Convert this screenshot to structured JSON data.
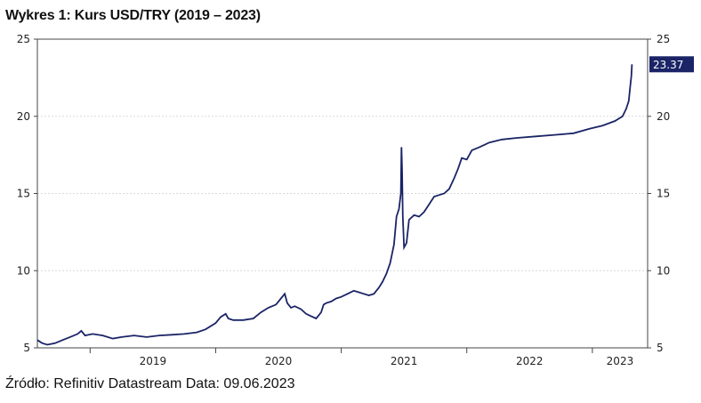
{
  "title": "Wykres 1: Kurs USD/TRY (2019 – 2023)",
  "source": "Źródło: Refinitiv Datastream Data: 09.06.2023",
  "colors": {
    "line": "#1a2466",
    "badge": "#1a2466",
    "grid": "#d9d9d9"
  },
  "chart_data": {
    "type": "line",
    "title": "Wykres 1: Kurs USD/TRY (2019 – 2023)",
    "xlabel": "",
    "ylabel": "",
    "ylim": [
      5,
      25
    ],
    "xlim": [
      2018.58,
      2023.44
    ],
    "y_ticks": [
      5,
      10,
      15,
      20,
      25
    ],
    "x_tick_labels": [
      "2019",
      "2020",
      "2021",
      "2022",
      "2023"
    ],
    "grid": true,
    "last_value_label": "23.37",
    "series": [
      {
        "values": [
          [
            2018.58,
            5.5
          ],
          [
            2018.62,
            5.3
          ],
          [
            2018.66,
            5.2
          ],
          [
            2018.72,
            5.3
          ],
          [
            2018.78,
            5.5
          ],
          [
            2018.84,
            5.7
          ],
          [
            2018.9,
            5.9
          ],
          [
            2018.93,
            6.1
          ],
          [
            2018.96,
            5.8
          ],
          [
            2019.02,
            5.9
          ],
          [
            2019.1,
            5.8
          ],
          [
            2019.18,
            5.6
          ],
          [
            2019.25,
            5.7
          ],
          [
            2019.35,
            5.8
          ],
          [
            2019.45,
            5.7
          ],
          [
            2019.55,
            5.8
          ],
          [
            2019.65,
            5.85
          ],
          [
            2019.75,
            5.9
          ],
          [
            2019.85,
            6.0
          ],
          [
            2019.92,
            6.2
          ],
          [
            2020.0,
            6.6
          ],
          [
            2020.04,
            7.0
          ],
          [
            2020.08,
            7.2
          ],
          [
            2020.1,
            6.9
          ],
          [
            2020.14,
            6.8
          ],
          [
            2020.22,
            6.8
          ],
          [
            2020.3,
            6.9
          ],
          [
            2020.36,
            7.3
          ],
          [
            2020.42,
            7.6
          ],
          [
            2020.48,
            7.8
          ],
          [
            2020.52,
            8.2
          ],
          [
            2020.55,
            8.5
          ],
          [
            2020.57,
            7.9
          ],
          [
            2020.6,
            7.6
          ],
          [
            2020.63,
            7.7
          ],
          [
            2020.68,
            7.5
          ],
          [
            2020.72,
            7.2
          ],
          [
            2020.76,
            7.05
          ],
          [
            2020.8,
            6.9
          ],
          [
            2020.82,
            7.1
          ],
          [
            2020.84,
            7.3
          ],
          [
            2020.86,
            7.8
          ],
          [
            2020.88,
            7.9
          ],
          [
            2020.92,
            8.0
          ],
          [
            2020.96,
            8.2
          ],
          [
            2021.0,
            8.3
          ],
          [
            2021.05,
            8.5
          ],
          [
            2021.1,
            8.7
          ],
          [
            2021.14,
            8.6
          ],
          [
            2021.18,
            8.5
          ],
          [
            2021.22,
            8.4
          ],
          [
            2021.26,
            8.5
          ],
          [
            2021.28,
            8.7
          ],
          [
            2021.3,
            8.9
          ],
          [
            2021.33,
            9.3
          ],
          [
            2021.36,
            9.8
          ],
          [
            2021.39,
            10.5
          ],
          [
            2021.42,
            11.7
          ],
          [
            2021.44,
            13.5
          ],
          [
            2021.46,
            14.0
          ],
          [
            2021.475,
            15.0
          ],
          [
            2021.48,
            18.0
          ],
          [
            2021.485,
            16.5
          ],
          [
            2021.49,
            13.5
          ],
          [
            2021.5,
            11.5
          ],
          [
            2021.52,
            11.8
          ],
          [
            2021.54,
            13.3
          ],
          [
            2021.58,
            13.6
          ],
          [
            2021.62,
            13.5
          ],
          [
            2021.66,
            13.8
          ],
          [
            2021.7,
            14.3
          ],
          [
            2021.74,
            14.8
          ],
          [
            2021.78,
            14.9
          ],
          [
            2021.82,
            15.0
          ],
          [
            2021.86,
            15.3
          ],
          [
            2021.9,
            16.0
          ],
          [
            2021.93,
            16.6
          ],
          [
            2021.96,
            17.3
          ],
          [
            2022.0,
            17.2
          ],
          [
            2022.04,
            17.8
          ],
          [
            2022.1,
            18.0
          ],
          [
            2022.18,
            18.3
          ],
          [
            2022.28,
            18.5
          ],
          [
            2022.4,
            18.6
          ],
          [
            2022.55,
            18.7
          ],
          [
            2022.7,
            18.8
          ],
          [
            2022.85,
            18.9
          ],
          [
            2022.98,
            19.2
          ],
          [
            2023.08,
            19.4
          ],
          [
            2023.18,
            19.7
          ],
          [
            2023.24,
            20.0
          ],
          [
            2023.27,
            20.5
          ],
          [
            2023.29,
            21.0
          ],
          [
            2023.3,
            21.8
          ],
          [
            2023.31,
            22.6
          ],
          [
            2023.315,
            23.37
          ]
        ]
      }
    ]
  }
}
